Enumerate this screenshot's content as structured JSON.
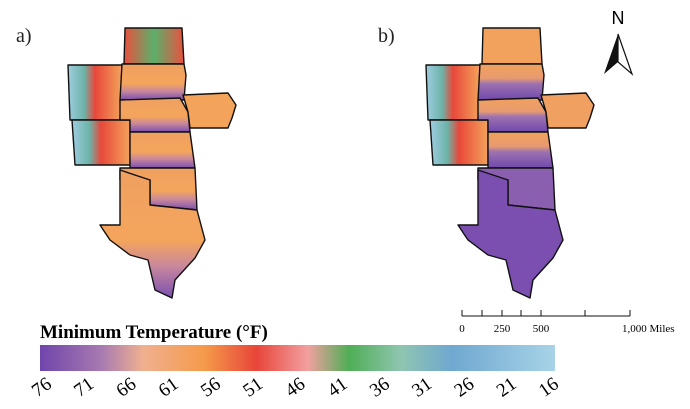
{
  "panels": [
    {
      "label": "a)"
    },
    {
      "label": "b)"
    }
  ],
  "north_arrow": {
    "label": "N"
  },
  "scale_bar": {
    "labels": [
      "0",
      "250",
      "500",
      "1,000 Miles"
    ]
  },
  "legend": {
    "title": "Minimum Temperature (°F)",
    "ticks": [
      "76",
      "71",
      "66",
      "61",
      "56",
      "51",
      "46",
      "41",
      "36",
      "31",
      "26",
      "21",
      "16"
    ]
  }
}
